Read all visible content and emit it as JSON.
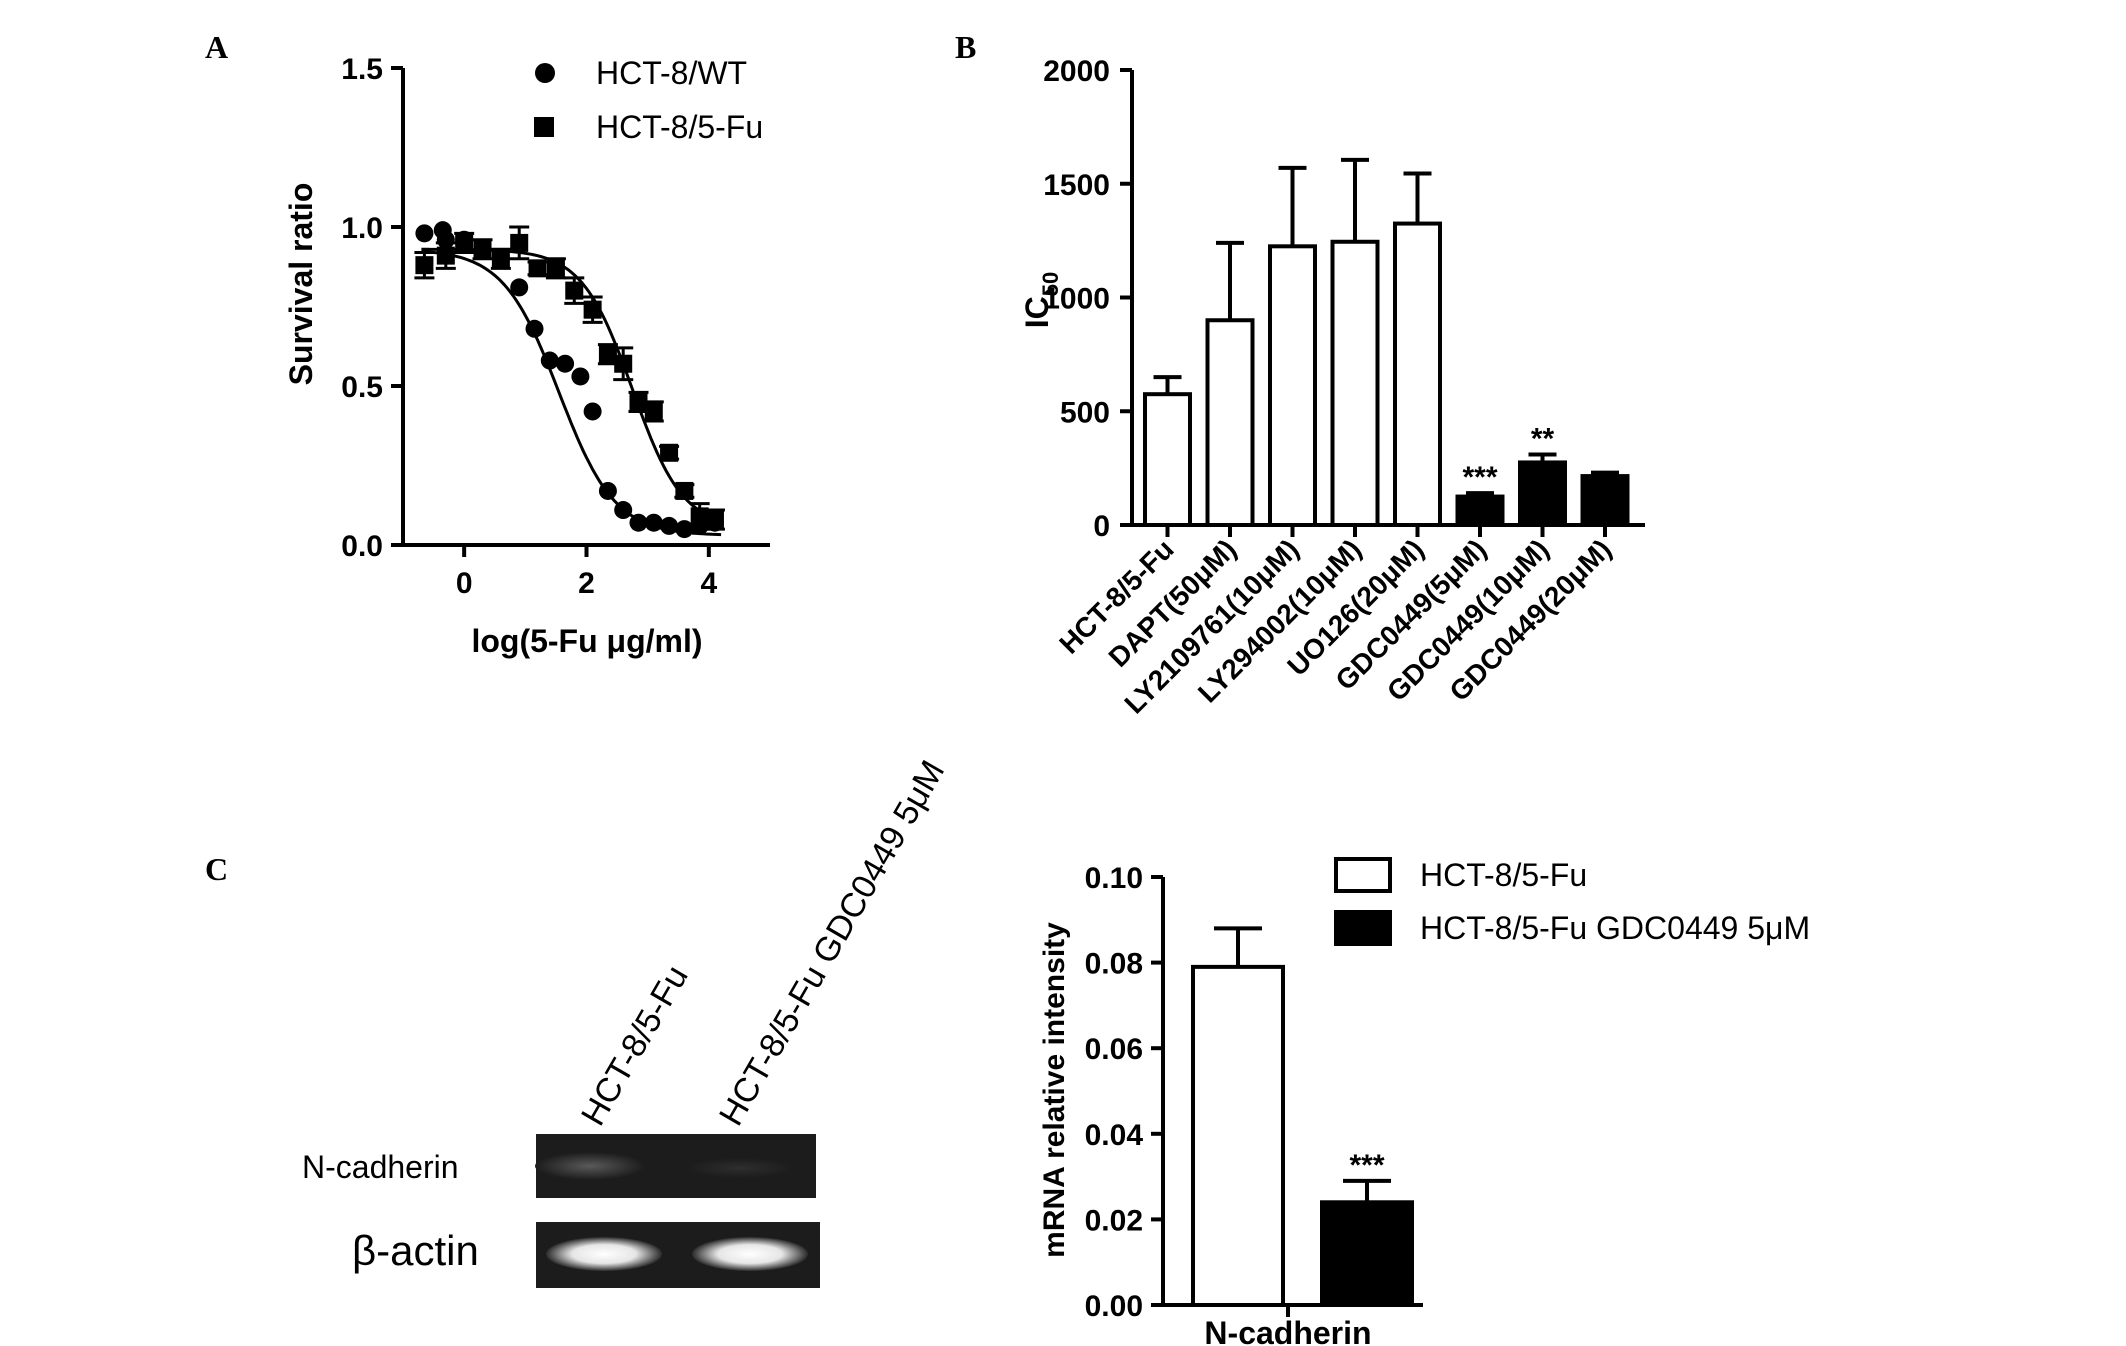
{
  "panel_labels": {
    "a": "A",
    "b": "B",
    "c": "C"
  },
  "gel": {
    "lane_labels": [
      "HCT-8/5-Fu",
      "HCT-8/5-Fu GDC0449 5μM"
    ],
    "row_labels": [
      "N-cadherin",
      "β-actin"
    ]
  },
  "chart_data": [
    {
      "id": "A",
      "type": "scatter",
      "xlabel": "log(5-Fu μg/ml)",
      "ylabel": "Survival ratio",
      "xlim": [
        -1,
        5
      ],
      "ylim": [
        0,
        1.5
      ],
      "xticks": [
        0,
        2,
        4
      ],
      "yticks": [
        0.0,
        0.5,
        1.0,
        1.5
      ],
      "ytick_labels": [
        "0.0",
        "0.5",
        "1.0",
        "1.5"
      ],
      "legend_position": "top-right",
      "series": [
        {
          "name": "HCT-8/WT",
          "marker": "circle",
          "x": [
            -0.65,
            -0.35,
            -0.3,
            0,
            0.3,
            0.6,
            0.9,
            1.15,
            1.4,
            1.65,
            1.9,
            2.1,
            2.35,
            2.6,
            2.85,
            3.1,
            3.35,
            3.6,
            3.85,
            4.1
          ],
          "y": [
            0.98,
            0.99,
            0.96,
            0.96,
            0.93,
            0.9,
            0.81,
            0.68,
            0.58,
            0.57,
            0.53,
            0.42,
            0.17,
            0.11,
            0.07,
            0.07,
            0.06,
            0.05,
            0.06,
            0.07
          ],
          "fit": {
            "top": 0.93,
            "bottom": 0.03,
            "logIC50": 1.55,
            "slope": -0.95
          }
        },
        {
          "name": "HCT-8/5-Fu",
          "marker": "square",
          "x": [
            -0.65,
            -0.3,
            0,
            0.3,
            0.6,
            0.9,
            1.2,
            1.5,
            1.8,
            2.1,
            2.35,
            2.6,
            2.85,
            3.1,
            3.35,
            3.6,
            3.85,
            4.1
          ],
          "y": [
            0.88,
            0.91,
            0.95,
            0.93,
            0.9,
            0.95,
            0.87,
            0.87,
            0.8,
            0.74,
            0.6,
            0.57,
            0.45,
            0.42,
            0.29,
            0.17,
            0.09,
            0.08
          ],
          "err": [
            0.04,
            0.04,
            0.03,
            0.03,
            0.03,
            0.05,
            0.02,
            0.03,
            0.04,
            0.04,
            0.03,
            0.05,
            0.03,
            0.03,
            0.02,
            0.02,
            0.04,
            0.03
          ],
          "fit": {
            "top": 0.93,
            "bottom": 0.05,
            "logIC50": 2.75,
            "slope": -1.05
          }
        }
      ]
    },
    {
      "id": "B",
      "type": "bar",
      "ylabel": "IC",
      "ylabel_sub": "50",
      "ylim": [
        0,
        2000
      ],
      "yticks": [
        0,
        500,
        1000,
        1500,
        2000
      ],
      "categories": [
        "HCT-8/5-Fu",
        "DAPT(50μM)",
        "LY2109761(10μM)",
        "LY294002(10μM)",
        "UO126(20μM)",
        "GDC0449(5μM)",
        "GDC0449(10μM)",
        "GDC0449(20μM)"
      ],
      "values": [
        575,
        900,
        1225,
        1245,
        1325,
        125,
        275,
        215
      ],
      "errors": [
        75,
        340,
        345,
        360,
        220,
        15,
        35,
        15
      ],
      "fills": [
        "#ffffff",
        "#ffffff",
        "#ffffff",
        "#ffffff",
        "#ffffff",
        "#000000",
        "#000000",
        "#000000"
      ],
      "annotations": [
        "",
        "",
        "",
        "",
        "",
        "***",
        "**",
        ""
      ]
    },
    {
      "id": "C",
      "type": "bar",
      "ylabel": "mRNA relative intensity",
      "xlabel": "N-cadherin",
      "ylim": [
        0,
        0.1
      ],
      "yticks": [
        0.0,
        0.02,
        0.04,
        0.06,
        0.08,
        0.1
      ],
      "ytick_labels": [
        "0.00",
        "0.02",
        "0.04",
        "0.06",
        "0.08",
        "0.10"
      ],
      "legend_position": "top-right",
      "series": [
        {
          "name": "HCT-8/5-Fu",
          "value": 0.079,
          "error": 0.009,
          "fill": "#ffffff",
          "annotation": ""
        },
        {
          "name": "HCT-8/5-Fu GDC0449 5μM",
          "value": 0.024,
          "error": 0.005,
          "fill": "#000000",
          "annotation": "***"
        }
      ]
    }
  ]
}
